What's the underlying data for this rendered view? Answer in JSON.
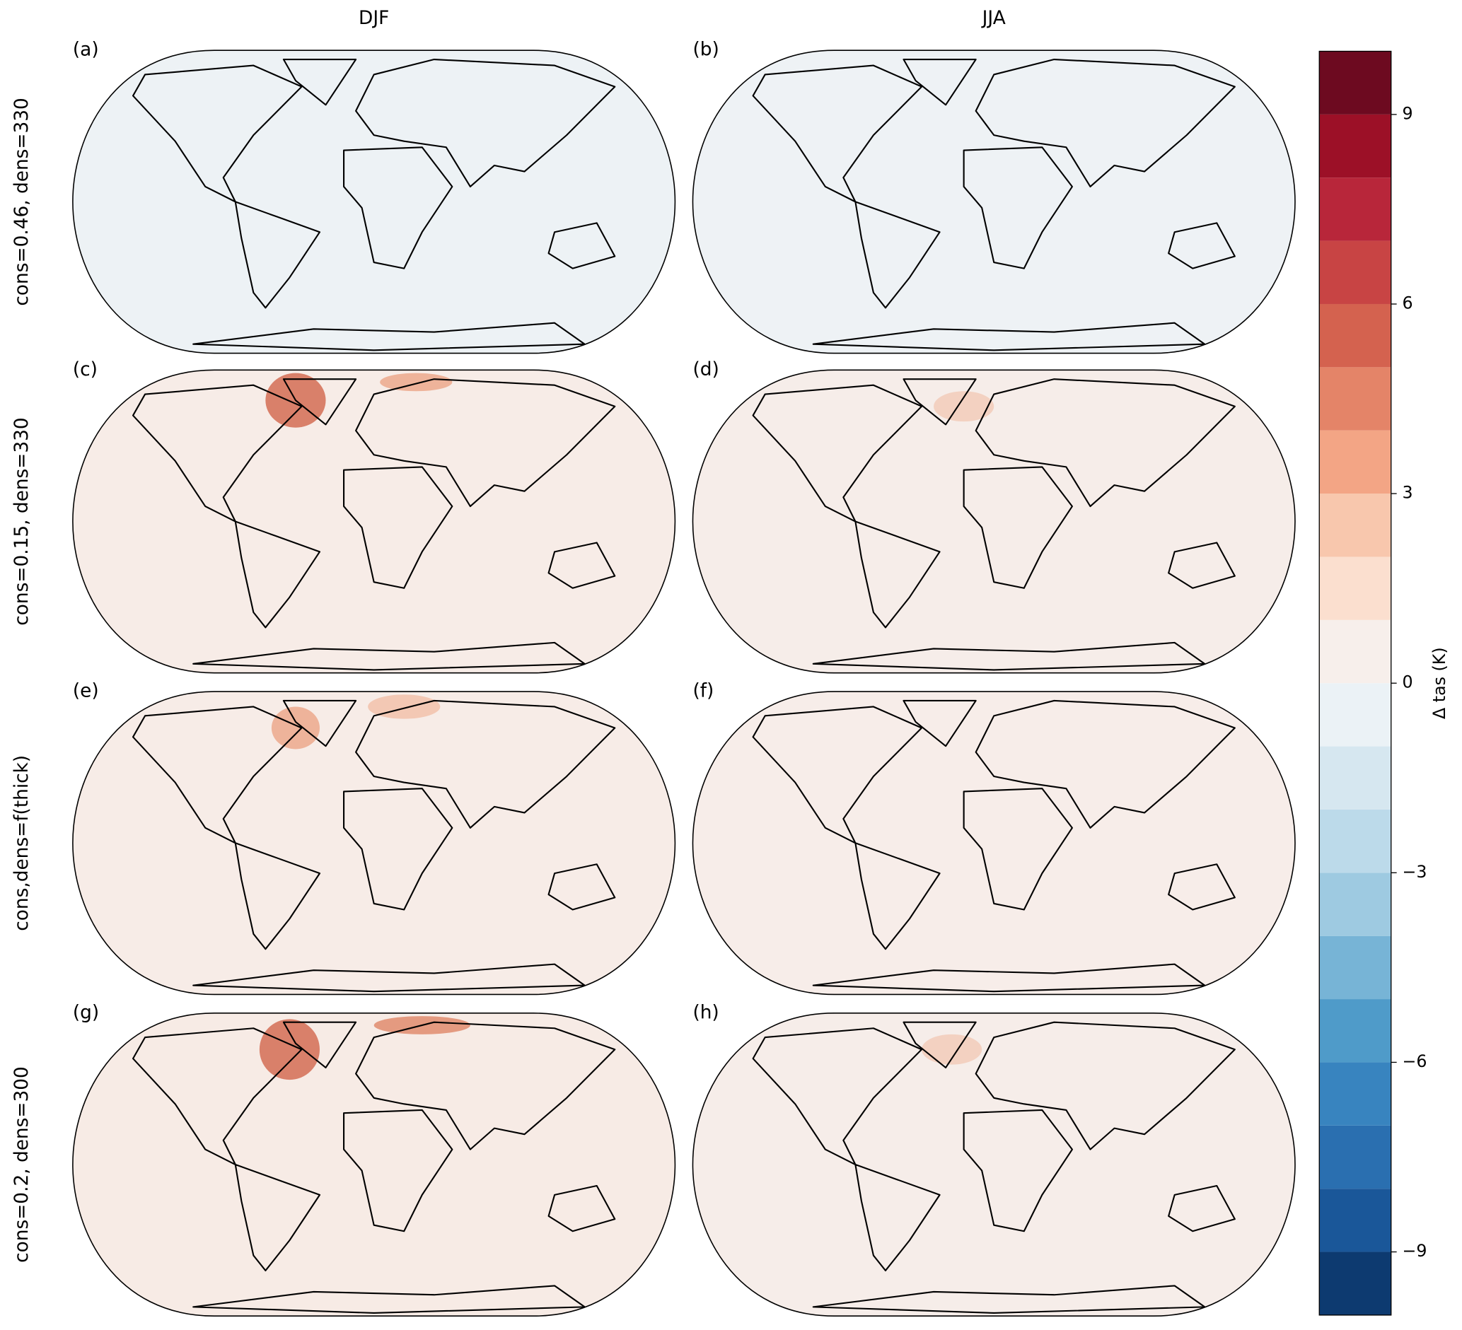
{
  "chart_data": {
    "type": "map",
    "columns": [
      "DJF",
      "JJA"
    ],
    "rows": [
      "cons=0.46, dens=330",
      "cons=0.15, dens=330",
      "cons,dens=f(thick)",
      "cons=0.2, dens=300"
    ],
    "panels": [
      "(a)",
      "(b)",
      "(c)",
      "(d)",
      "(e)",
      "(f)",
      "(g)",
      "(h)"
    ],
    "colorbar": {
      "label": "Δ tas (K)",
      "ylim": [
        -10,
        10
      ],
      "levels": [
        -10,
        -9,
        -8,
        -7,
        -6,
        -5,
        -4,
        -3,
        -2,
        -1,
        0,
        1,
        2,
        3,
        4,
        5,
        6,
        7,
        8,
        9,
        10
      ],
      "colors": [
        "#0d3a70",
        "#1a5799",
        "#2a6fb0",
        "#3884bf",
        "#4f9bc9",
        "#77b4d6",
        "#9ecae1",
        "#bcdaea",
        "#d6e7f0",
        "#ebf2f6",
        "#f7efeb",
        "#fbdfcf",
        "#f8c7ad",
        "#f3a585",
        "#e48468",
        "#d4624f",
        "#c84444",
        "#b8263a",
        "#9c1027",
        "#6d0a20"
      ],
      "yticks": [
        {
          "value": -9,
          "label": "−9"
        },
        {
          "value": -6,
          "label": "−6"
        },
        {
          "value": -3,
          "label": "−3"
        },
        0,
        3,
        6,
        9
      ]
    }
  }
}
